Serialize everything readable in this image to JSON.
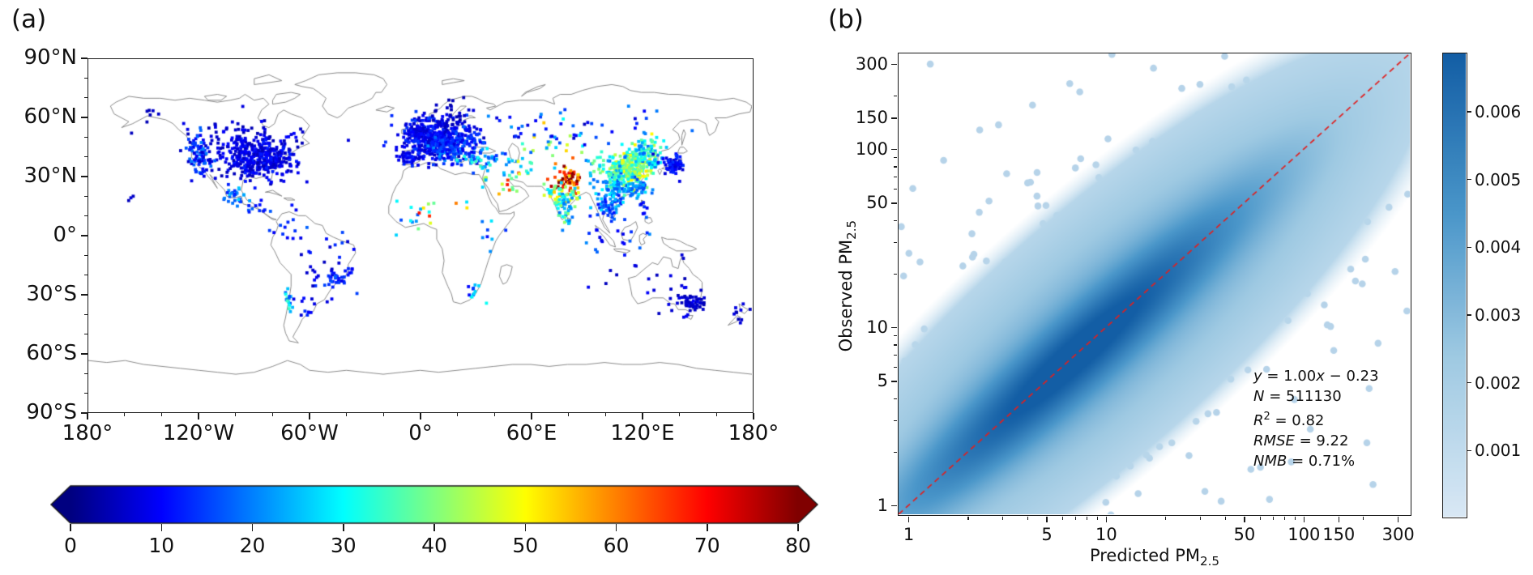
{
  "panel_a": {
    "label": "(a)",
    "y_tick_labels": [
      "90°N",
      "60°N",
      "30°N",
      "0°",
      "30°S",
      "60°S",
      "90°S"
    ],
    "x_tick_labels": [
      "180°",
      "120°W",
      "60°W",
      "0°",
      "60°E",
      "120°E",
      "180°"
    ],
    "colorbar_tick_labels": [
      "0",
      "10",
      "20",
      "30",
      "40",
      "50",
      "60",
      "70",
      "80"
    ]
  },
  "panel_b": {
    "label": "(b)",
    "xlabel_main": "Predicted PM",
    "xlabel_sub": "2.5",
    "ylabel_main": "Observed PM",
    "ylabel_sub": "2.5",
    "x_tick_labels": [
      "1",
      "5",
      "10",
      "50",
      "100",
      "150",
      "300"
    ],
    "y_tick_labels": [
      "300",
      "150",
      "100",
      "50",
      "10",
      "5",
      "1"
    ],
    "colorbar_tick_labels": [
      "0.006",
      "0.005",
      "0.004",
      "0.003",
      "0.002",
      "0.001"
    ],
    "stats_lines": [
      [
        {
          "t": "y",
          "i": 1
        },
        {
          "t": " = 1.00",
          "i": 0
        },
        {
          "t": "x",
          "i": 1
        },
        {
          "t": " − 0.23",
          "i": 0
        }
      ],
      [
        {
          "t": "N",
          "i": 1
        },
        {
          "t": " = 511130",
          "i": 0
        }
      ],
      [
        {
          "t": "R",
          "i": 1
        },
        {
          "t": "2",
          "i": 0,
          "sup": 1
        },
        {
          "t": " = 0.82",
          "i": 0
        }
      ],
      [
        {
          "t": "RMSE",
          "i": 1
        },
        {
          "t": " = 9.22",
          "i": 0
        }
      ],
      [
        {
          "t": "NMB",
          "i": 1
        },
        {
          "t": " = 0.71%",
          "i": 0
        }
      ]
    ]
  },
  "colors": {
    "coastline": "#8a8a8a",
    "spine": "#1a1a1a",
    "identity_line": "#e02020",
    "density_dot": "#b6d3e9",
    "blues_light": "#d9e8f5",
    "blues_dark": "#135ea5",
    "jet_low": "#000080",
    "jet_high": "#800000"
  },
  "chart_data": [
    {
      "id": "station-map",
      "type": "scatter",
      "projection": "equirectangular",
      "lon_range": [
        -180,
        180
      ],
      "lat_range": [
        -90,
        90
      ],
      "x_ticks_deg": [
        -180,
        -120,
        -60,
        0,
        60,
        120,
        180
      ],
      "y_ticks_deg": [
        90,
        60,
        30,
        0,
        -30,
        -60,
        -90
      ],
      "x_minor_step_deg": 20,
      "y_minor_step_deg": 10,
      "colorbar": {
        "min": 0,
        "max": 80,
        "ticks": [
          0,
          10,
          20,
          30,
          40,
          50,
          60,
          70,
          80
        ],
        "colormap": "jet",
        "extend": "both"
      },
      "value_name": "PM2.5",
      "station_clusters": [
        {
          "name": "us-east",
          "lon": -85,
          "lat": 39,
          "dlon": 9,
          "dlat": 5,
          "n": 320,
          "vmin": 4,
          "vmax": 13
        },
        {
          "name": "us-central",
          "lon": -100,
          "lat": 40,
          "dlon": 6,
          "dlat": 6,
          "n": 70,
          "vmin": 4,
          "vmax": 11
        },
        {
          "name": "us-west",
          "lon": -120,
          "lat": 41,
          "dlon": 3,
          "dlat": 6,
          "n": 90,
          "vmin": 5,
          "vmax": 20
        },
        {
          "name": "canada-south",
          "lon": -100,
          "lat": 52,
          "dlon": 18,
          "dlat": 4,
          "n": 60,
          "vmin": 4,
          "vmax": 10
        },
        {
          "name": "alaska",
          "lon": -149,
          "lat": 62,
          "dlon": 4,
          "dlat": 2,
          "n": 6,
          "vmin": 4,
          "vmax": 9
        },
        {
          "name": "hawaii",
          "lon": -156,
          "lat": 20,
          "dlon": 2,
          "dlat": 1,
          "n": 3,
          "vmin": 3,
          "vmax": 7
        },
        {
          "name": "mexico",
          "lon": -100,
          "lat": 21,
          "dlon": 4,
          "dlat": 3,
          "n": 28,
          "vmin": 12,
          "vmax": 28
        },
        {
          "name": "central-america",
          "lon": -88,
          "lat": 14,
          "dlon": 4,
          "dlat": 2,
          "n": 10,
          "vmin": 8,
          "vmax": 20
        },
        {
          "name": "colombia-venezuela",
          "lon": -72,
          "lat": 6,
          "dlon": 5,
          "dlat": 4,
          "n": 15,
          "vmin": 8,
          "vmax": 18
        },
        {
          "name": "brazil",
          "lon": -48,
          "lat": -15,
          "dlon": 8,
          "dlat": 8,
          "n": 40,
          "vmin": 5,
          "vmax": 16
        },
        {
          "name": "brazil-se",
          "lon": -46,
          "lat": -23,
          "dlon": 3,
          "dlat": 2,
          "n": 20,
          "vmin": 8,
          "vmax": 18
        },
        {
          "name": "chile",
          "lon": -71,
          "lat": -33,
          "dlon": 1,
          "dlat": 5,
          "n": 15,
          "vmin": 15,
          "vmax": 38
        },
        {
          "name": "argentina",
          "lon": -62,
          "lat": -36,
          "dlon": 4,
          "dlat": 4,
          "n": 10,
          "vmin": 6,
          "vmax": 14
        },
        {
          "name": "europe-core",
          "lon": 8,
          "lat": 49,
          "dlon": 9,
          "dlat": 5,
          "n": 420,
          "vmin": 5,
          "vmax": 15
        },
        {
          "name": "uk",
          "lon": -2,
          "lat": 53,
          "dlon": 2,
          "dlat": 2,
          "n": 50,
          "vmin": 5,
          "vmax": 12
        },
        {
          "name": "spain",
          "lon": -4,
          "lat": 40,
          "dlon": 4,
          "dlat": 2,
          "n": 50,
          "vmin": 6,
          "vmax": 14
        },
        {
          "name": "italy-balkans",
          "lon": 16,
          "lat": 43,
          "dlon": 6,
          "dlat": 4,
          "n": 90,
          "vmin": 8,
          "vmax": 22
        },
        {
          "name": "scandinavia",
          "lon": 15,
          "lat": 60,
          "dlon": 6,
          "dlat": 4,
          "n": 40,
          "vmin": 3,
          "vmax": 9
        },
        {
          "name": "east-europe",
          "lon": 25,
          "lat": 50,
          "dlon": 6,
          "dlat": 4,
          "n": 60,
          "vmin": 8,
          "vmax": 18
        },
        {
          "name": "turkey",
          "lon": 33,
          "lat": 39,
          "dlon": 6,
          "dlat": 2,
          "n": 40,
          "vmin": 12,
          "vmax": 35
        },
        {
          "name": "levant",
          "lon": 35,
          "lat": 32,
          "dlon": 2,
          "dlat": 3,
          "n": 12,
          "vmin": 20,
          "vmax": 45
        },
        {
          "name": "gulf",
          "lon": 50,
          "lat": 26,
          "dlon": 4,
          "dlat": 3,
          "n": 12,
          "vmin": 35,
          "vmax": 72
        },
        {
          "name": "iran",
          "lon": 52,
          "lat": 33,
          "dlon": 5,
          "dlat": 3,
          "n": 15,
          "vmin": 20,
          "vmax": 48
        },
        {
          "name": "central-asia",
          "lon": 70,
          "lat": 45,
          "dlon": 10,
          "dlat": 5,
          "n": 25,
          "vmin": 12,
          "vmax": 60
        },
        {
          "name": "russia-west",
          "lon": 60,
          "lat": 55,
          "dlon": 25,
          "dlat": 5,
          "n": 30,
          "vmin": 6,
          "vmax": 28
        },
        {
          "name": "siberia",
          "lon": 105,
          "lat": 55,
          "dlon": 20,
          "dlat": 5,
          "n": 20,
          "vmin": 5,
          "vmax": 22
        },
        {
          "name": "india-north",
          "lon": 79,
          "lat": 28,
          "dlon": 5,
          "dlat": 3,
          "n": 70,
          "vmin": 50,
          "vmax": 88
        },
        {
          "name": "india-central",
          "lon": 78,
          "lat": 21,
          "dlon": 5,
          "dlat": 3,
          "n": 50,
          "vmin": 25,
          "vmax": 58
        },
        {
          "name": "india-south",
          "lon": 78,
          "lat": 13,
          "dlon": 3,
          "dlat": 4,
          "n": 40,
          "vmin": 18,
          "vmax": 42
        },
        {
          "name": "china-east",
          "lon": 115,
          "lat": 34,
          "dlon": 5,
          "dlat": 5,
          "n": 260,
          "vmin": 28,
          "vmax": 52
        },
        {
          "name": "china-northeast",
          "lon": 124,
          "lat": 43,
          "dlon": 4,
          "dlat": 4,
          "n": 70,
          "vmin": 18,
          "vmax": 38
        },
        {
          "name": "china-south",
          "lon": 110,
          "lat": 24,
          "dlon": 6,
          "dlat": 3,
          "n": 90,
          "vmin": 15,
          "vmax": 30
        },
        {
          "name": "china-west",
          "lon": 103,
          "lat": 33,
          "dlon": 6,
          "dlat": 5,
          "n": 60,
          "vmin": 18,
          "vmax": 42
        },
        {
          "name": "korea",
          "lon": 127.5,
          "lat": 36.5,
          "dlon": 1.5,
          "dlat": 1.5,
          "n": 25,
          "vmin": 18,
          "vmax": 35
        },
        {
          "name": "japan",
          "lon": 137,
          "lat": 36,
          "dlon": 3.5,
          "dlat": 2.5,
          "n": 70,
          "vmin": 6,
          "vmax": 15
        },
        {
          "name": "taiwan",
          "lon": 121,
          "lat": 24,
          "dlon": 0.8,
          "dlat": 1,
          "n": 10,
          "vmin": 15,
          "vmax": 28
        },
        {
          "name": "thailand",
          "lon": 102,
          "lat": 15,
          "dlon": 4,
          "dlat": 4,
          "n": 45,
          "vmin": 10,
          "vmax": 28
        },
        {
          "name": "vietnam",
          "lon": 106,
          "lat": 17,
          "dlon": 2,
          "dlat": 5,
          "n": 25,
          "vmin": 12,
          "vmax": 30
        },
        {
          "name": "indonesia-malaysia",
          "lon": 105,
          "lat": 0,
          "dlon": 8,
          "dlat": 4,
          "n": 20,
          "vmin": 8,
          "vmax": 22
        },
        {
          "name": "philippines",
          "lon": 121,
          "lat": 13,
          "dlon": 2,
          "dlat": 3,
          "n": 8,
          "vmin": 8,
          "vmax": 18
        },
        {
          "name": "africa-west",
          "lon": -5,
          "lat": 8,
          "dlon": 8,
          "dlat": 4,
          "n": 12,
          "vmin": 15,
          "vmax": 50
        },
        {
          "name": "africa-east",
          "lon": 37,
          "lat": 0,
          "dlon": 4,
          "dlat": 6,
          "n": 8,
          "vmin": 10,
          "vmax": 32
        },
        {
          "name": "africa-sahel",
          "lon": 10,
          "lat": 14,
          "dlon": 12,
          "dlat": 4,
          "n": 8,
          "vmin": 25,
          "vmax": 70
        },
        {
          "name": "south-africa",
          "lon": 28,
          "lat": -27,
          "dlon": 3,
          "dlat": 3,
          "n": 12,
          "vmin": 10,
          "vmax": 38
        },
        {
          "name": "australia-southeast",
          "lon": 148,
          "lat": -35,
          "dlon": 4,
          "dlat": 3,
          "n": 50,
          "vmin": 4,
          "vmax": 10
        },
        {
          "name": "australia-other",
          "lon": 130,
          "lat": -25,
          "dlon": 12,
          "dlat": 8,
          "n": 25,
          "vmin": 4,
          "vmax": 10
        },
        {
          "name": "new-zealand",
          "lon": 174,
          "lat": -39,
          "dlon": 2,
          "dlat": 3,
          "n": 10,
          "vmin": 3,
          "vmax": 8
        }
      ]
    },
    {
      "id": "predicted-vs-observed",
      "type": "scatter-density",
      "x_scale": "log",
      "y_scale": "log",
      "x_range": [
        0.88,
        350
      ],
      "y_range": [
        0.88,
        350
      ],
      "x_ticks": [
        1,
        5,
        10,
        50,
        100,
        150,
        300
      ],
      "y_ticks": [
        300,
        150,
        100,
        50,
        10,
        5,
        1
      ],
      "minor_ticks": [
        2,
        3,
        4,
        6,
        7,
        8,
        9,
        20,
        30,
        40,
        60,
        70,
        80,
        90,
        200
      ],
      "identity_line": {
        "from": [
          0.88,
          0.88
        ],
        "to": [
          350,
          350
        ],
        "style": "dashed"
      },
      "stats": {
        "slope": 1.0,
        "intercept": -0.23,
        "N": 511130,
        "R2": 0.82,
        "RMSE": 9.22,
        "NMB_pct": 0.71
      },
      "colorbar": {
        "min": 0.0,
        "max": 0.00687,
        "ticks": [
          0.006,
          0.005,
          0.004,
          0.003,
          0.002,
          0.001
        ],
        "colormap": "Blues"
      },
      "density_model": {
        "m_center": 0.83,
        "m_sigma": 0.48,
        "p_sigma": 0.16,
        "broad_weight": 0.22,
        "broad_m_center": 0.95,
        "broad_m_sigma": 0.75,
        "broad_p_sigma": 0.42,
        "threshold": 0.014
      },
      "edge_dots": {
        "n": 780,
        "m_center": 0.9,
        "m_sigma": 0.62,
        "p_sigma": 0.5,
        "uniform_frac": 0.12,
        "radius": 4.3
      }
    }
  ]
}
